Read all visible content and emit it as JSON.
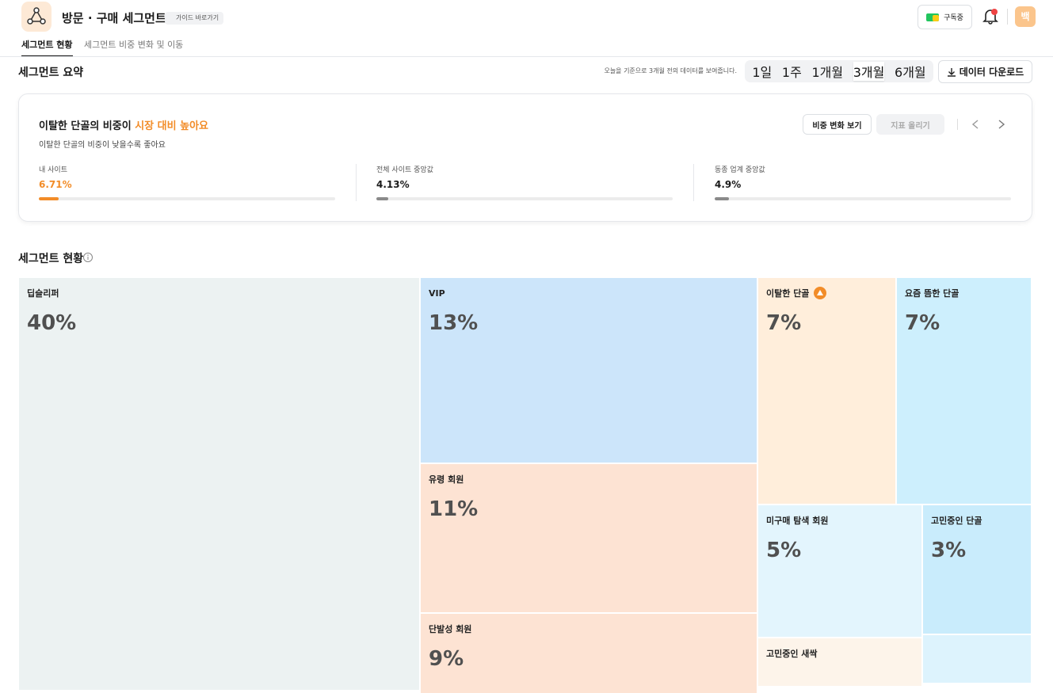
{
  "header": {
    "title": "방문 · 구매 세그먼트",
    "guide_link": "가이드 바로가기",
    "subscription": "구독중",
    "avatar": "백"
  },
  "tabs": [
    "세그먼트 현황",
    "세그먼트 비중 변화 및 이동"
  ],
  "summary": {
    "title": "세그먼트 요약",
    "period_note": "오늘을 기준으로 3개월 전의 데이터를 보여줍니다.",
    "periods": [
      "1일",
      "1주",
      "1개월",
      "3개월",
      "6개월"
    ],
    "download": "데이터 다운로드",
    "insight": {
      "headline": "이탈한 단골의 비중이 ",
      "highlight": "시장 대비 높아요",
      "subtitle": "이탈한 단골의 비중이 낮을수록 좋아요",
      "view_button": "비중 변화 보기",
      "boost_button": "지표 올리기",
      "metrics": [
        {
          "label": "내 사이트",
          "value": 6.71,
          "value_label": "6.71%"
        },
        {
          "label": "전체 사이트 중앙값",
          "value": 4.13,
          "value_label": "4.13%"
        },
        {
          "label": "동종 업계 중앙값",
          "value": 4.9,
          "value_label": "4.9%"
        }
      ]
    }
  },
  "status": {
    "title": "세그먼트 현황",
    "tiles": [
      {
        "name": "딥슬리퍼",
        "share": "40%"
      },
      {
        "name": "VIP",
        "share": "13%"
      },
      {
        "name": "유령 회원",
        "share": "11%"
      },
      {
        "name": "단발성 회원",
        "share": "9%"
      },
      {
        "name": "이탈한 단골",
        "share": "7%"
      },
      {
        "name": "요즘 뜸한 단골",
        "share": "7%"
      },
      {
        "name": "미구매 탐색 회원",
        "share": "5%"
      },
      {
        "name": "고민중인 단골",
        "share": "3%"
      },
      {
        "name": "고민중인 새싹"
      }
    ]
  }
}
